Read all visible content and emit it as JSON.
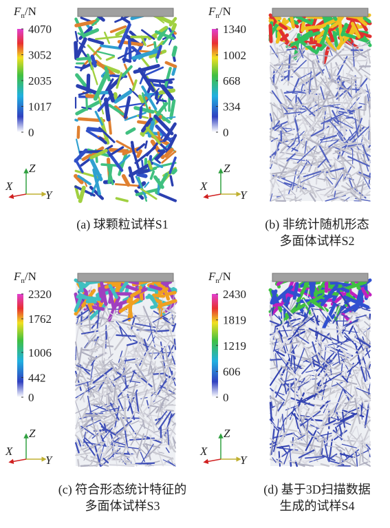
{
  "axes": {
    "x": "X",
    "y": "Y",
    "z": "Z"
  },
  "colorbar_title": {
    "symbol": "F",
    "subscript": "n",
    "unit": "/N"
  },
  "panels": [
    {
      "caption": [
        "(a) 球颗粒试样S1"
      ],
      "colorbar_ticks": [
        0,
        1017,
        2035,
        3052,
        4070
      ]
    },
    {
      "caption": [
        "(b) 非统计随机形态",
        "多面体试样S2"
      ],
      "colorbar_ticks": [
        0,
        334,
        668,
        1002,
        1340
      ]
    },
    {
      "caption": [
        "(c) 符合形态统计特征的",
        "多面体试样S3"
      ],
      "colorbar_ticks": [
        0,
        442,
        1006,
        1762,
        2320
      ]
    },
    {
      "caption": [
        "(d) 基于3D扫描数据",
        "生成的试样S4"
      ],
      "colorbar_ticks": [
        0,
        606,
        1219,
        1819,
        2430
      ]
    }
  ]
}
